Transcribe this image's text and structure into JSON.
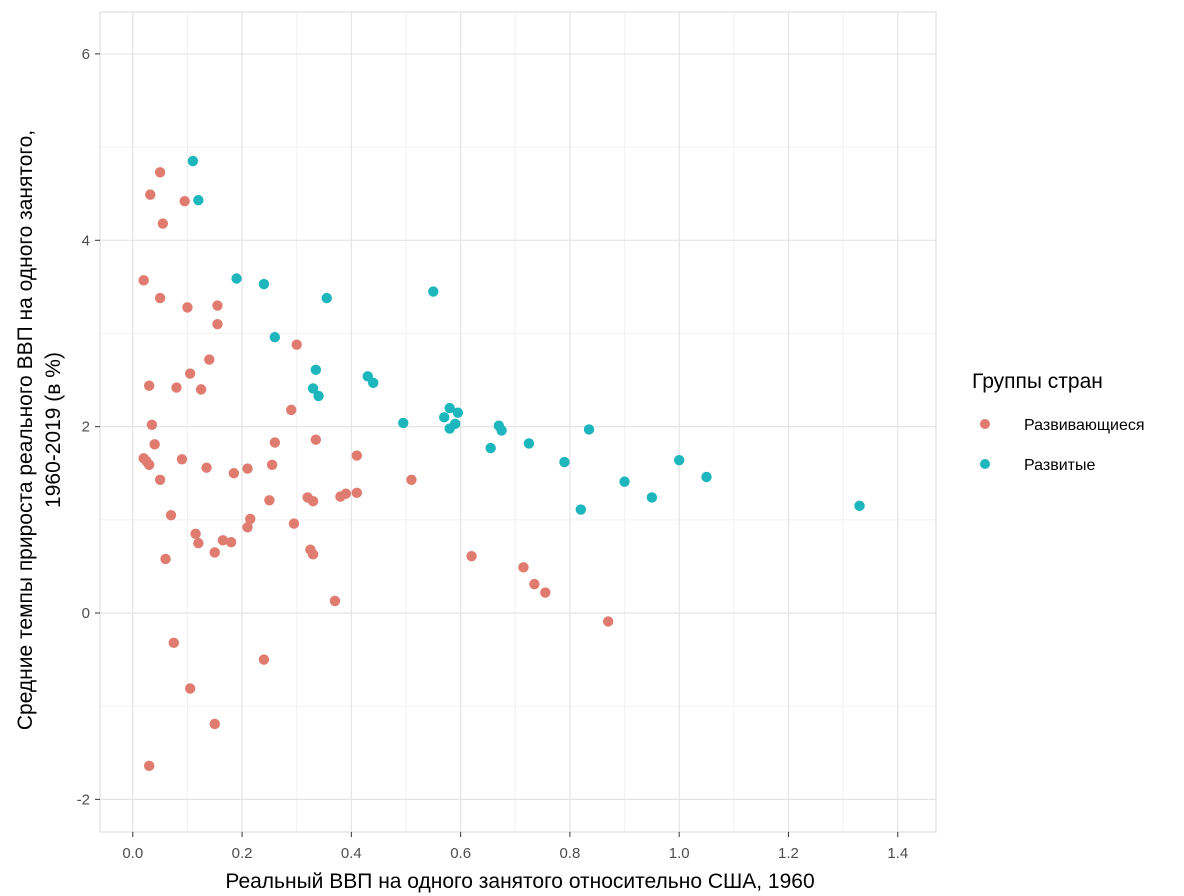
{
  "chart_data": {
    "type": "scatter",
    "xlabel": "Реальный ВВП на одного занятого относительно США, 1960",
    "ylabel": "Средние темпы прироста реального ВВП на одного занятого, 1960-2019 (в %)",
    "ylabel_lines": [
      "Средние темпы прироста реального ВВП на одного занятого,",
      "1960-2019 (в %)"
    ],
    "xlim": [
      -0.06,
      1.47
    ],
    "ylim": [
      -2.35,
      6.45
    ],
    "x_ticks": [
      0.0,
      0.2,
      0.4,
      0.6,
      0.8,
      1.0,
      1.2,
      1.4
    ],
    "x_tick_labels": [
      "0.0",
      "0.2",
      "0.4",
      "0.6",
      "0.8",
      "1.0",
      "1.2",
      "1.4"
    ],
    "y_ticks": [
      -2,
      0,
      2,
      4,
      6
    ],
    "y_tick_labels": [
      "-2",
      "0",
      "2",
      "4",
      "6"
    ],
    "grid": true,
    "legend": {
      "title": "Группы стран",
      "placement": "right",
      "entries": [
        "Развивающиеся",
        "Развитые"
      ]
    },
    "series": [
      {
        "name": "Развивающиеся",
        "color": "#E07B6F",
        "points": [
          [
            0.02,
            3.57
          ],
          [
            0.02,
            1.66
          ],
          [
            0.025,
            1.63
          ],
          [
            0.03,
            2.44
          ],
          [
            0.03,
            1.59
          ],
          [
            0.03,
            -1.64
          ],
          [
            0.032,
            4.49
          ],
          [
            0.035,
            2.02
          ],
          [
            0.04,
            1.81
          ],
          [
            0.05,
            4.73
          ],
          [
            0.05,
            3.38
          ],
          [
            0.05,
            1.43
          ],
          [
            0.055,
            4.18
          ],
          [
            0.06,
            0.58
          ],
          [
            0.07,
            1.05
          ],
          [
            0.075,
            -0.32
          ],
          [
            0.08,
            2.42
          ],
          [
            0.09,
            1.65
          ],
          [
            0.095,
            4.42
          ],
          [
            0.1,
            3.28
          ],
          [
            0.105,
            2.57
          ],
          [
            0.105,
            -0.81
          ],
          [
            0.115,
            0.85
          ],
          [
            0.12,
            0.75
          ],
          [
            0.125,
            2.4
          ],
          [
            0.135,
            1.56
          ],
          [
            0.14,
            2.72
          ],
          [
            0.15,
            0.65
          ],
          [
            0.15,
            -1.19
          ],
          [
            0.155,
            3.3
          ],
          [
            0.155,
            3.1
          ],
          [
            0.165,
            0.78
          ],
          [
            0.18,
            0.76
          ],
          [
            0.185,
            1.5
          ],
          [
            0.21,
            1.55
          ],
          [
            0.21,
            0.92
          ],
          [
            0.215,
            1.01
          ],
          [
            0.24,
            -0.5
          ],
          [
            0.25,
            1.21
          ],
          [
            0.255,
            1.59
          ],
          [
            0.26,
            1.83
          ],
          [
            0.29,
            2.18
          ],
          [
            0.295,
            0.96
          ],
          [
            0.3,
            2.88
          ],
          [
            0.32,
            1.24
          ],
          [
            0.325,
            0.68
          ],
          [
            0.33,
            1.2
          ],
          [
            0.33,
            0.63
          ],
          [
            0.335,
            1.86
          ],
          [
            0.37,
            0.13
          ],
          [
            0.38,
            1.25
          ],
          [
            0.39,
            1.28
          ],
          [
            0.41,
            1.69
          ],
          [
            0.41,
            1.29
          ],
          [
            0.51,
            1.43
          ],
          [
            0.62,
            0.61
          ],
          [
            0.715,
            0.49
          ],
          [
            0.735,
            0.31
          ],
          [
            0.755,
            0.22
          ],
          [
            0.87,
            -0.09
          ]
        ]
      },
      {
        "name": "Развитые",
        "color": "#1EB6BD",
        "points": [
          [
            0.11,
            4.85
          ],
          [
            0.12,
            4.43
          ],
          [
            0.19,
            3.59
          ],
          [
            0.24,
            3.53
          ],
          [
            0.26,
            2.96
          ],
          [
            0.33,
            2.41
          ],
          [
            0.335,
            2.61
          ],
          [
            0.34,
            2.33
          ],
          [
            0.355,
            3.38
          ],
          [
            0.43,
            2.54
          ],
          [
            0.44,
            2.47
          ],
          [
            0.495,
            2.04
          ],
          [
            0.55,
            3.45
          ],
          [
            0.57,
            2.1
          ],
          [
            0.58,
            2.2
          ],
          [
            0.58,
            1.98
          ],
          [
            0.59,
            2.03
          ],
          [
            0.595,
            2.15
          ],
          [
            0.655,
            1.77
          ],
          [
            0.67,
            2.01
          ],
          [
            0.675,
            1.96
          ],
          [
            0.725,
            1.82
          ],
          [
            0.79,
            1.62
          ],
          [
            0.82,
            1.11
          ],
          [
            0.835,
            1.97
          ],
          [
            0.9,
            1.41
          ],
          [
            0.95,
            1.24
          ],
          [
            1.0,
            1.64
          ],
          [
            1.05,
            1.46
          ],
          [
            1.33,
            1.15
          ]
        ]
      }
    ]
  }
}
